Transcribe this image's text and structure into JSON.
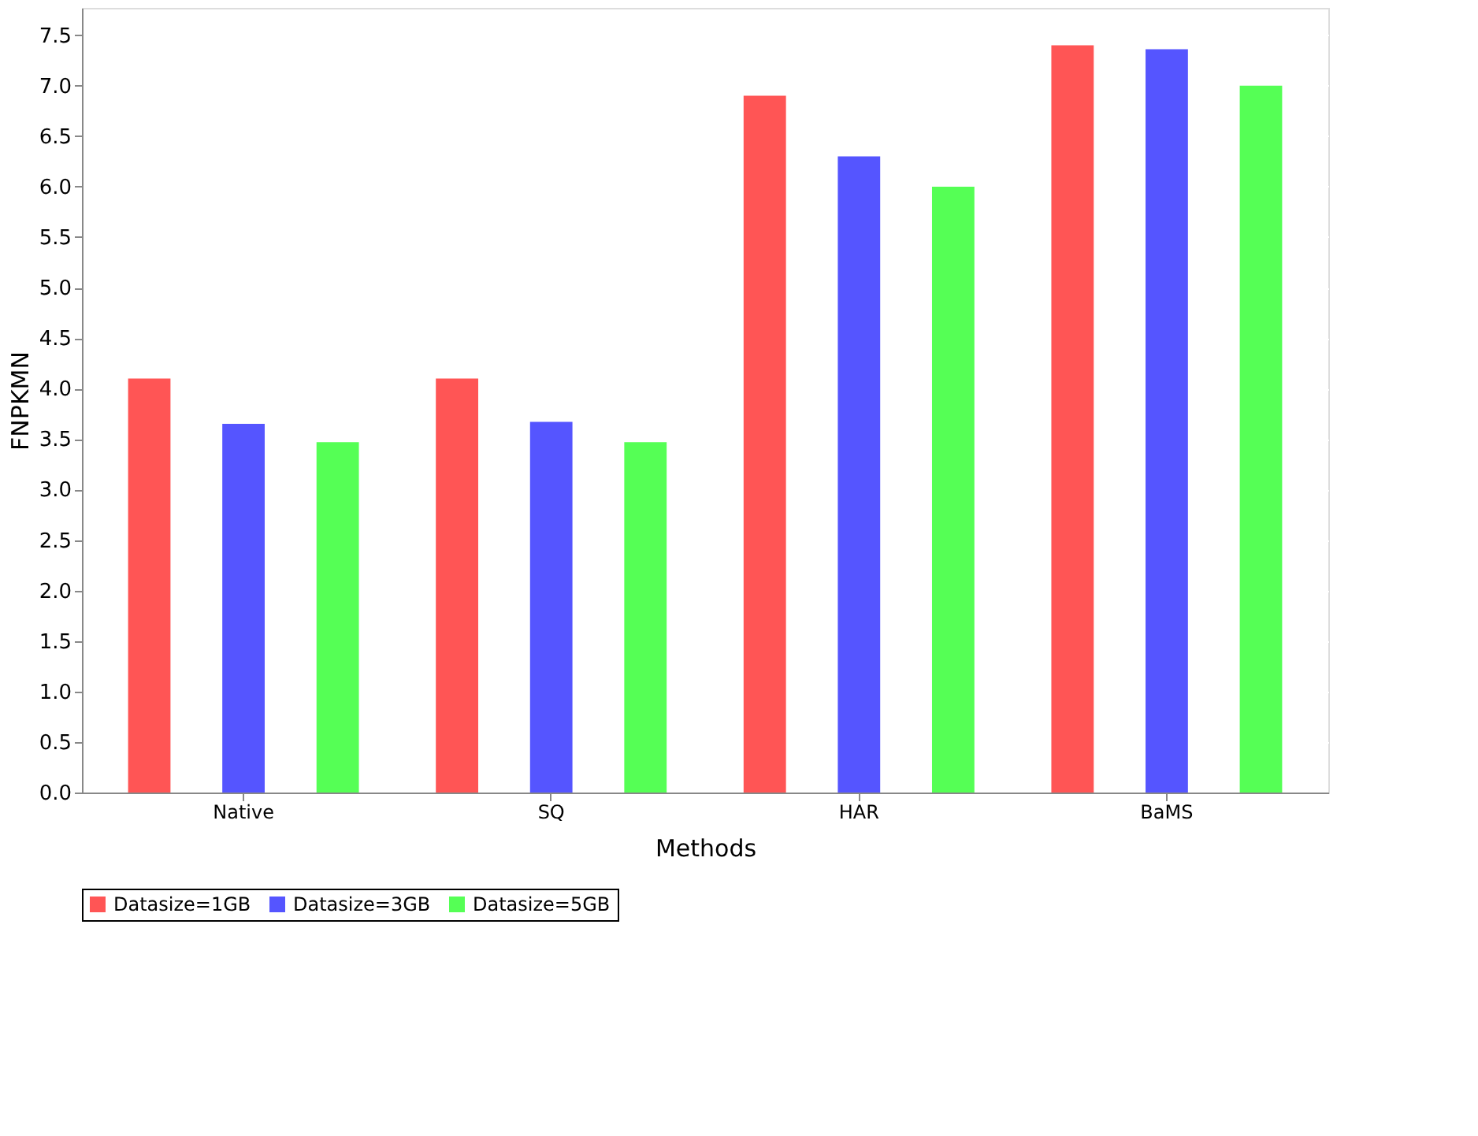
{
  "chart_data": {
    "type": "bar",
    "xlabel": "Methods",
    "ylabel": "FNPKMN",
    "categories": [
      "Native",
      "SQ",
      "HAR",
      "BaMS"
    ],
    "series": [
      {
        "name": "Datasize=1GB",
        "color": "#ff5555",
        "values": [
          4.1,
          4.1,
          6.9,
          7.4
        ]
      },
      {
        "name": "Datasize=3GB",
        "color": "#5555ff",
        "values": [
          3.65,
          3.67,
          6.3,
          7.36
        ]
      },
      {
        "name": "Datasize=5GB",
        "color": "#55ff55",
        "values": [
          3.47,
          3.47,
          6.0,
          7.0
        ]
      }
    ],
    "ylim": [
      0,
      7.77
    ],
    "yticks": [
      {
        "value": 0,
        "label": "0.0"
      },
      {
        "value": 0.5,
        "label": "0.5"
      },
      {
        "value": 1,
        "label": "1.0"
      },
      {
        "value": 1.5,
        "label": "1.5"
      },
      {
        "value": 2,
        "label": "2.0"
      },
      {
        "value": 2.5,
        "label": "2.5"
      },
      {
        "value": 3,
        "label": "3.0"
      },
      {
        "value": 3.5,
        "label": "3.5"
      },
      {
        "value": 4,
        "label": "4.0"
      },
      {
        "value": 4.5,
        "label": "4.5"
      },
      {
        "value": 5,
        "label": "5.0"
      },
      {
        "value": 5.5,
        "label": "5.5"
      },
      {
        "value": 6,
        "label": "6.0"
      },
      {
        "value": 6.5,
        "label": "6.5"
      },
      {
        "value": 7,
        "label": "7.0"
      },
      {
        "value": 7.5,
        "label": "7.5"
      }
    ],
    "grid": "y",
    "legend": "bottom"
  }
}
